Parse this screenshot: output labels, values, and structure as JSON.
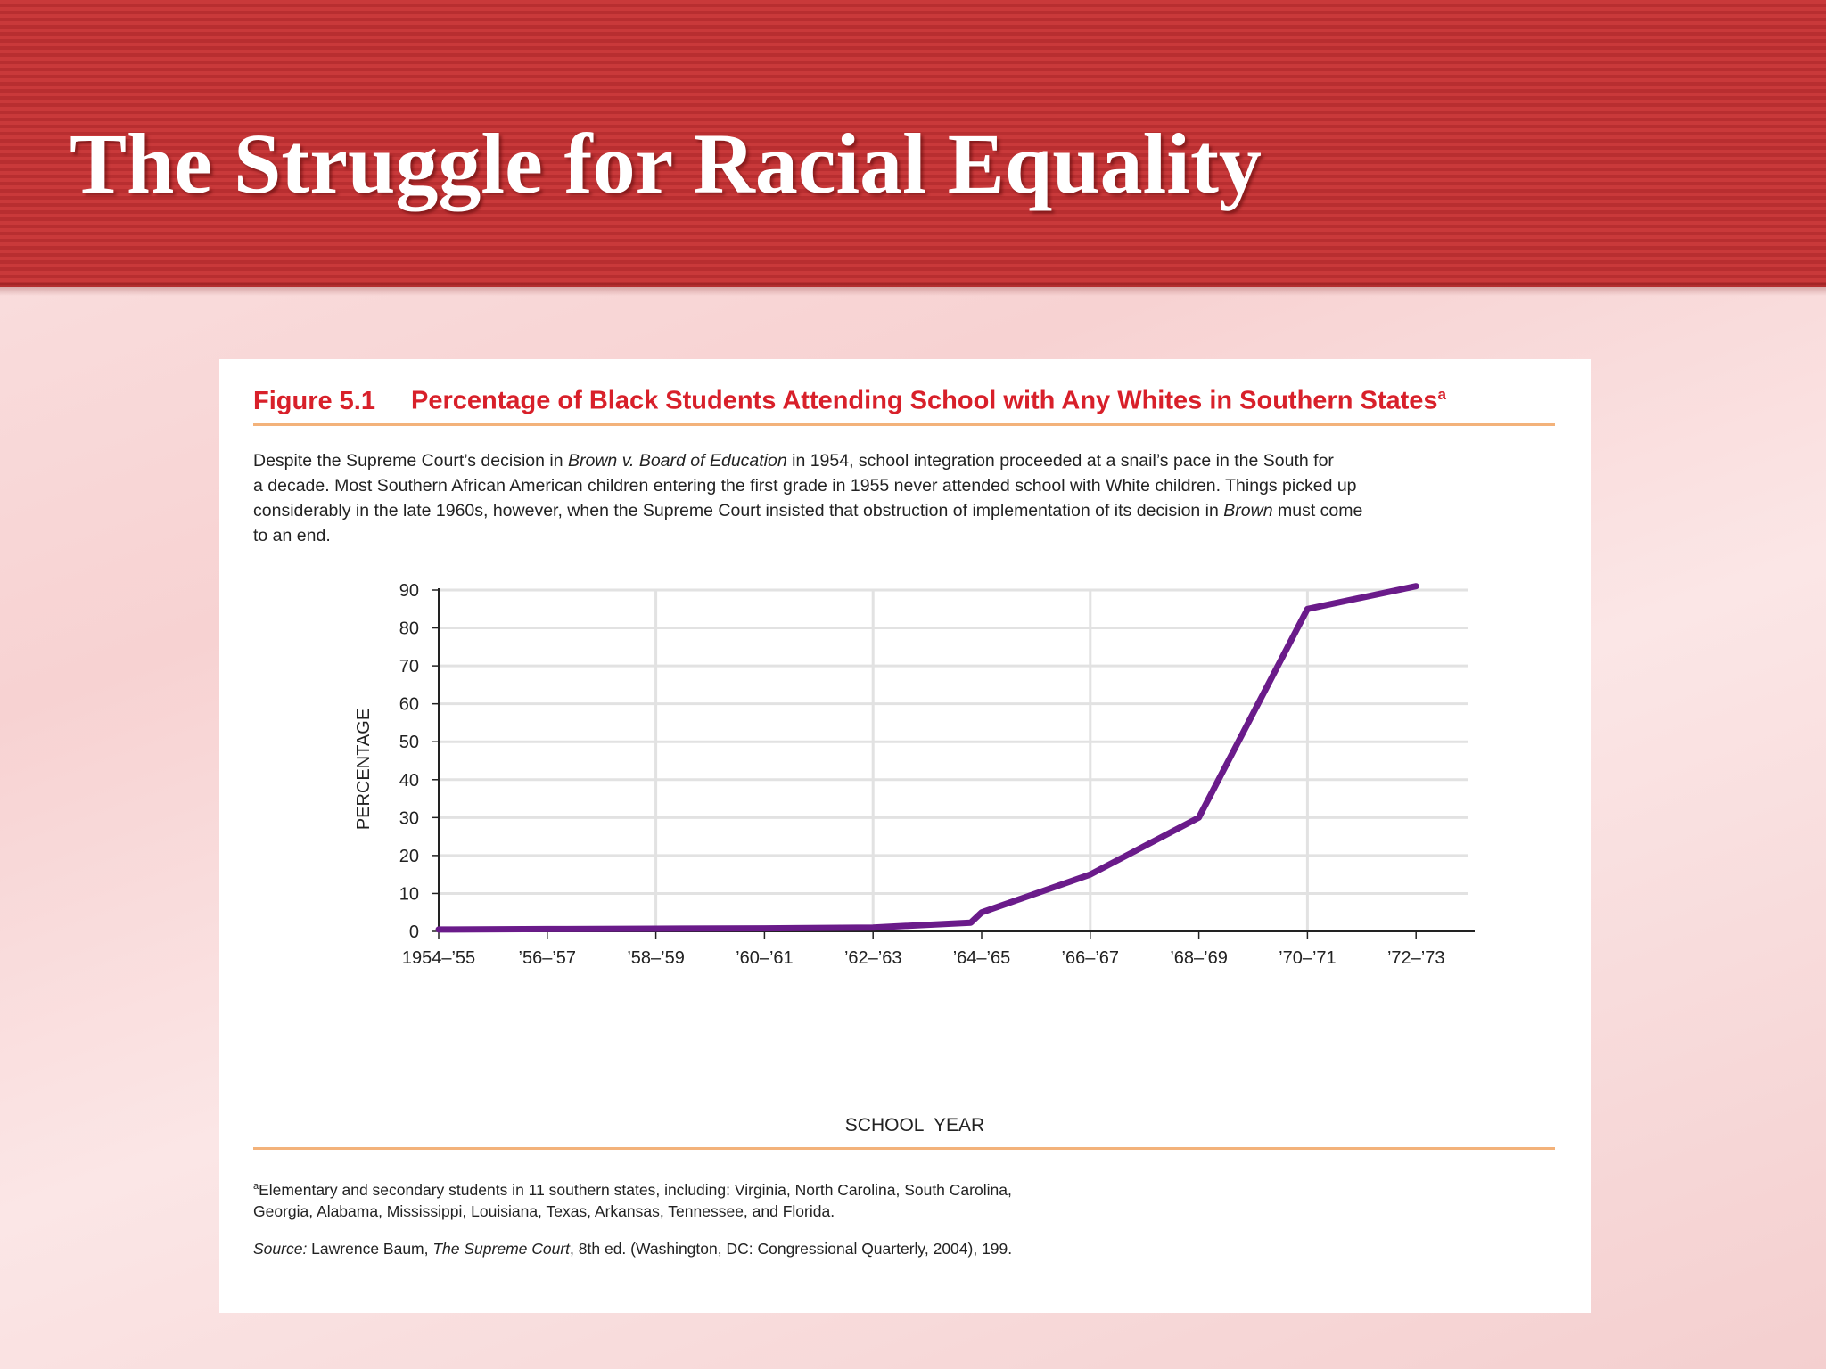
{
  "slide": {
    "title": "The Struggle for Racial Equality"
  },
  "figure": {
    "number": "Figure 5.1",
    "title": "Percentage of Black Students Attending School with Any Whites in Southern States",
    "title_marker": "a",
    "caption": {
      "line1_a": "Despite the Supreme Court’s decision in ",
      "line1_italic": "Brown v. Board of Education",
      "line1_b": " in 1954, school integration proceeded at a snail’s pace in the South for",
      "line2": "a decade. Most Southern African American children entering the first grade in 1955 never attended school with White children. Things picked up",
      "line3_a": "considerably in the late 1960s, however, when the Supreme Court insisted that obstruction of implementation of its decision in ",
      "line3_italic": "Brown",
      "line3_b": " must come",
      "line4": "to an end."
    },
    "footnote": {
      "marker": "a",
      "line1": "Elementary and secondary students in 11 southern states, including: Virginia, North Carolina, South Carolina,",
      "line2": "Georgia, Alabama, Mississippi, Louisiana, Texas, Arkansas, Tennessee, and Florida."
    },
    "source": {
      "label": "Source:",
      "text_a": " Lawrence Baum, ",
      "title_italic": "The Supreme Court",
      "text_b": ", 8th ed. (Washington, DC: Congressional Quarterly, 2004), 199."
    }
  },
  "chart_data": {
    "type": "line",
    "xlabel": "SCHOOL  YEAR",
    "ylabel": "PERCENTAGE",
    "ylim": [
      0,
      90
    ],
    "yticks": [
      0,
      10,
      20,
      30,
      40,
      50,
      60,
      70,
      80,
      90
    ],
    "x_tick_labels": [
      "1954–’55",
      "’56–’57",
      "’58–’59",
      "’60–’61",
      "’62–’63",
      "’64–’65",
      "’66–’67",
      "’68–’69",
      "’70–’71",
      "’72–’73"
    ],
    "grid": true,
    "line_color": "#6a1b8a",
    "series": [
      {
        "x": [
          "1954–’55",
          "’56–’57",
          "’58–’59",
          "’60–’61",
          "’62–’63",
          "’63–’64",
          "’64–’65",
          "’66–’67",
          "’68–’69",
          "’70–’71",
          "’72–’73"
        ],
        "x_index": [
          0,
          1,
          2,
          3,
          4,
          4.9,
          5,
          6,
          7,
          8,
          9
        ],
        "values": [
          0.5,
          0.6,
          0.7,
          0.8,
          1.0,
          2.3,
          5,
          15,
          30,
          85,
          91
        ]
      }
    ]
  }
}
